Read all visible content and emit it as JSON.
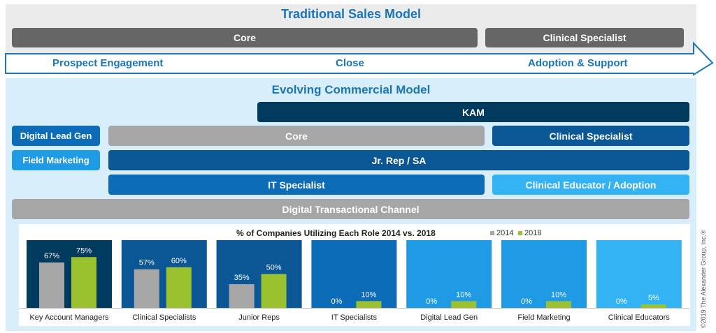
{
  "traditional": {
    "title": "Traditional Sales Model",
    "core": "Core",
    "clinical_specialist": "Clinical Specialist"
  },
  "stages": {
    "prospect": "Prospect Engagement",
    "close": "Close",
    "adoption": "Adoption & Support"
  },
  "evolving": {
    "title": "Evolving Commercial Model",
    "kam": "KAM",
    "digital_lead_gen": "Digital Lead Gen",
    "field_marketing": "Field Marketing",
    "core": "Core",
    "clinical_specialist": "Clinical Specialist",
    "jr_rep": "Jr. Rep / SA",
    "it_specialist": "IT Specialist",
    "clinical_educator": "Clinical Educator / Adoption",
    "digital_channel": "Digital Transactional Channel"
  },
  "colors": {
    "gray_dark": "#666666",
    "gray_light": "#a6a6a6",
    "navy": "#003a5d",
    "blue_dark": "#0b5694",
    "blue_mid": "#0d6cb8",
    "blue_bright": "#1f9be6",
    "blue_light": "#33b3f3",
    "series_2014": "#a6a6a6",
    "series_2018": "#99c22e",
    "accent_text": "#1a75bb"
  },
  "chart_data": {
    "type": "bar",
    "title": "% of Companies Utilizing Each Role 2014 vs. 2018",
    "categories": [
      "Key Account Managers",
      "Clinical Specialists",
      "Junior Reps",
      "IT Specialists",
      "Digital Lead Gen",
      "Field Marketing",
      "Clinical Educators"
    ],
    "series": [
      {
        "name": "2014",
        "values": [
          67,
          57,
          35,
          0,
          0,
          0,
          0
        ]
      },
      {
        "name": "2018",
        "values": [
          75,
          60,
          50,
          10,
          10,
          10,
          5
        ]
      }
    ],
    "value_labels_2014": [
      "67%",
      "57%",
      "35%",
      "0%",
      "0%",
      "0%",
      "0%"
    ],
    "value_labels_2018": [
      "75%",
      "60%",
      "50%",
      "10%",
      "10%",
      "10%",
      "5%"
    ],
    "panel_colors": [
      "#003a5d",
      "#0b5694",
      "#0b5694",
      "#0d6cb8",
      "#1f9be6",
      "#1f9be6",
      "#33b3f3"
    ],
    "ylim": [
      0,
      100
    ],
    "legend_position": "top-right"
  },
  "copyright": "©2019 The Alexander Group, Inc.®"
}
